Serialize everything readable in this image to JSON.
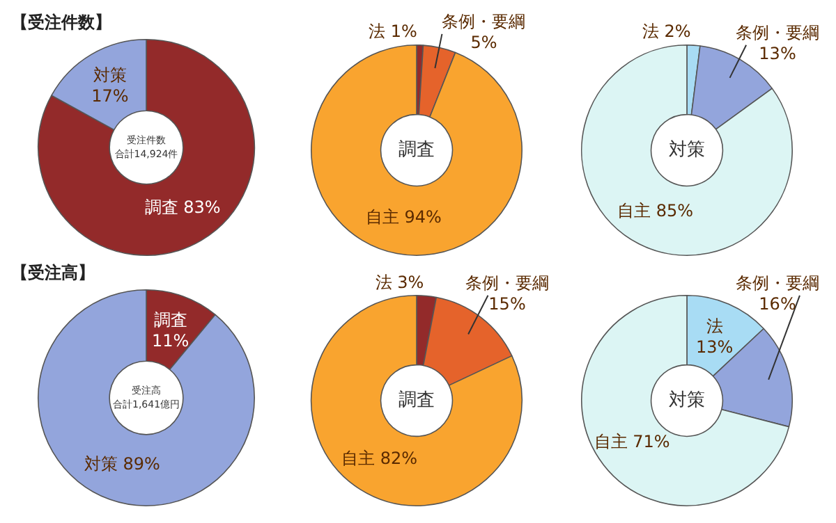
{
  "chart_data": [
    {
      "type": "donut",
      "title": "【受注件数】",
      "categories": [
        "調査",
        "対策"
      ],
      "values": [
        83,
        17
      ],
      "value_labels": [
        "83%",
        "17%"
      ],
      "colors": [
        "#932a2a",
        "#93a5dc"
      ],
      "annotations": [
        "受注件数",
        "合計14,924件"
      ],
      "legend": false
    },
    {
      "type": "donut",
      "categories": [
        "法",
        "条例・要綱",
        "自主"
      ],
      "values": [
        1,
        5,
        94
      ],
      "value_labels": [
        "1%",
        "5%",
        "94%"
      ],
      "colors": [
        "#932a2a",
        "#e5632b",
        "#f9a42f"
      ],
      "annotations": [
        "調査"
      ],
      "legend": false
    },
    {
      "type": "donut",
      "categories": [
        "法",
        "条例・要綱",
        "自主"
      ],
      "values": [
        2,
        13,
        85
      ],
      "value_labels": [
        "2%",
        "13%",
        "85%"
      ],
      "colors": [
        "#a8dcf4",
        "#93a5dc",
        "#dcf5f4"
      ],
      "annotations": [
        "対策"
      ],
      "legend": false
    },
    {
      "type": "donut",
      "title": "【受注高】",
      "categories": [
        "調査",
        "対策"
      ],
      "values": [
        11,
        89
      ],
      "value_labels": [
        "11%",
        "89%"
      ],
      "colors": [
        "#932a2a",
        "#93a5dc"
      ],
      "annotations": [
        "受注高",
        "合計1,641億円"
      ],
      "legend": false
    },
    {
      "type": "donut",
      "categories": [
        "法",
        "条例・要綱",
        "自主"
      ],
      "values": [
        3,
        15,
        82
      ],
      "value_labels": [
        "3%",
        "15%",
        "82%"
      ],
      "colors": [
        "#932a2a",
        "#e5632b",
        "#f9a42f"
      ],
      "annotations": [
        "調査"
      ],
      "legend": false
    },
    {
      "type": "donut",
      "categories": [
        "法",
        "条例・要綱",
        "自主"
      ],
      "values": [
        13,
        16,
        71
      ],
      "value_labels": [
        "13%",
        "16%",
        "71%"
      ],
      "colors": [
        "#a8dcf4",
        "#93a5dc",
        "#dcf5f4"
      ],
      "annotations": [
        "対策"
      ],
      "legend": false
    }
  ]
}
